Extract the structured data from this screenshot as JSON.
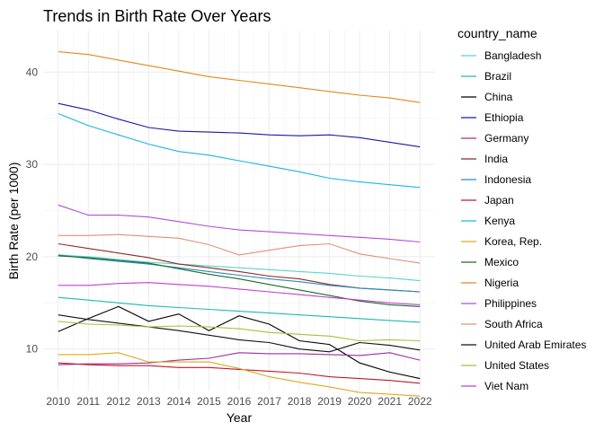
{
  "chart_data": {
    "type": "line",
    "title": "Trends in Birth Rate Over Years",
    "xlabel": "Year",
    "ylabel": "Birth Rate (per 1000)",
    "legend_title": "country_name",
    "legend_position": "right",
    "grid": true,
    "xlim": [
      2009.5,
      2022.5
    ],
    "ylim": [
      5.5,
      44.5
    ],
    "x": [
      2010,
      2011,
      2012,
      2013,
      2014,
      2015,
      2016,
      2017,
      2018,
      2019,
      2020,
      2021,
      2022
    ],
    "x_ticks": [
      "2010",
      "2011",
      "2012",
      "2013",
      "2014",
      "2015",
      "2016",
      "2017",
      "2018",
      "2019",
      "2020",
      "2021",
      "2022"
    ],
    "y_ticks": [
      10,
      20,
      30,
      40
    ],
    "y_tick_labels": [
      "10",
      "20",
      "30",
      "40"
    ],
    "series": [
      {
        "name": "Bangladesh",
        "color": "#5fd3c8",
        "values": [
          20.2,
          20.0,
          19.7,
          19.4,
          19.2,
          19.0,
          18.8,
          18.6,
          18.4,
          18.2,
          17.9,
          17.7,
          17.4
        ]
      },
      {
        "name": "Brazil",
        "color": "#20b8b8",
        "values": [
          15.6,
          15.3,
          15.0,
          14.7,
          14.5,
          14.3,
          14.1,
          13.9,
          13.7,
          13.5,
          13.3,
          13.1,
          12.9
        ]
      },
      {
        "name": "China",
        "color": "#000000",
        "values": [
          11.9,
          13.3,
          14.6,
          13.0,
          13.8,
          12.0,
          13.6,
          12.7,
          10.9,
          10.5,
          8.5,
          7.5,
          6.8
        ]
      },
      {
        "name": "Ethiopia",
        "color": "#1a1aa8",
        "values": [
          36.6,
          35.9,
          34.9,
          34.0,
          33.6,
          33.5,
          33.4,
          33.2,
          33.1,
          33.2,
          32.9,
          32.4,
          31.9
        ]
      },
      {
        "name": "Germany",
        "color": "#9a2fa0",
        "values": [
          8.3,
          8.4,
          8.4,
          8.5,
          8.8,
          9.0,
          9.6,
          9.5,
          9.5,
          9.4,
          9.3,
          9.6,
          8.8
        ]
      },
      {
        "name": "India",
        "color": "#8b2a2a",
        "values": [
          21.4,
          20.9,
          20.4,
          19.9,
          19.2,
          18.8,
          18.4,
          17.9,
          17.6,
          17.0,
          16.6,
          16.4,
          16.2
        ]
      },
      {
        "name": "Indonesia",
        "color": "#2a8cb8",
        "values": [
          20.2,
          19.8,
          19.5,
          19.2,
          18.8,
          18.4,
          18.0,
          17.6,
          17.3,
          16.9,
          16.6,
          16.4,
          16.2
        ]
      },
      {
        "name": "Japan",
        "color": "#c0182a",
        "values": [
          8.5,
          8.3,
          8.2,
          8.2,
          8.0,
          8.0,
          7.8,
          7.6,
          7.4,
          7.0,
          6.8,
          6.6,
          6.3
        ]
      },
      {
        "name": "Kenya",
        "color": "#18b8e0",
        "values": [
          35.5,
          34.2,
          33.2,
          32.2,
          31.4,
          31.0,
          30.4,
          29.8,
          29.2,
          28.5,
          28.1,
          27.8,
          27.5
        ]
      },
      {
        "name": "Korea, Rep.",
        "color": "#e0a818",
        "values": [
          9.4,
          9.4,
          9.6,
          8.6,
          8.6,
          8.6,
          7.9,
          7.0,
          6.4,
          5.9,
          5.3,
          5.1,
          4.9
        ]
      },
      {
        "name": "Mexico",
        "color": "#1a6b2a",
        "values": [
          20.1,
          19.9,
          19.6,
          19.3,
          18.7,
          18.1,
          17.6,
          17.0,
          16.4,
          15.8,
          15.2,
          14.8,
          14.6
        ]
      },
      {
        "name": "Nigeria",
        "color": "#e08a1a",
        "values": [
          42.2,
          41.9,
          41.3,
          40.7,
          40.1,
          39.5,
          39.1,
          38.7,
          38.3,
          37.9,
          37.5,
          37.2,
          36.7
        ]
      },
      {
        "name": "Philippines",
        "color": "#b34cd9",
        "values": [
          25.6,
          24.5,
          24.5,
          24.3,
          23.8,
          23.3,
          22.9,
          22.7,
          22.5,
          22.3,
          22.1,
          21.9,
          21.6
        ]
      },
      {
        "name": "South Africa",
        "color": "#e0907a",
        "values": [
          22.3,
          22.3,
          22.4,
          22.2,
          22.0,
          21.3,
          20.2,
          20.7,
          21.2,
          21.4,
          20.3,
          19.8,
          19.3
        ]
      },
      {
        "name": "United Arab Emirates",
        "color": "#101010",
        "values": [
          13.7,
          13.2,
          12.8,
          12.4,
          12.0,
          11.5,
          11.0,
          10.7,
          10.0,
          9.7,
          10.7,
          10.4,
          9.9
        ]
      },
      {
        "name": "United States",
        "color": "#a8c03a",
        "values": [
          13.0,
          12.7,
          12.6,
          12.4,
          12.5,
          12.4,
          12.2,
          11.8,
          11.6,
          11.4,
          10.9,
          11.0,
          10.9
        ]
      },
      {
        "name": "Viet Nam",
        "color": "#c040d0",
        "values": [
          16.9,
          16.9,
          17.1,
          17.2,
          17.0,
          16.8,
          16.5,
          16.2,
          15.9,
          15.6,
          15.3,
          15.0,
          14.8
        ]
      }
    ]
  }
}
